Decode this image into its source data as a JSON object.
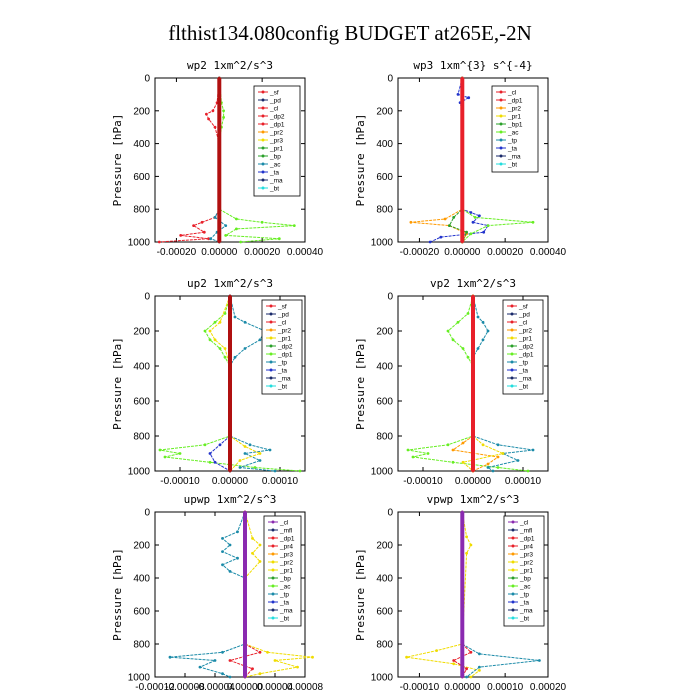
{
  "figure_title": "flthist134.080config  BUDGET at265E,-2N",
  "ylabel": "Pressure [hPa]",
  "colors": {
    "red": "#e8202a",
    "darkred": "#b01010",
    "orange": "#ff9a00",
    "yellow": "#f0dc00",
    "green": "#2aa02a",
    "lightgreen": "#66ee22",
    "teal": "#1a8aa8",
    "blue": "#2233cc",
    "navy": "#1a2a6a",
    "cyan": "#22dddd",
    "purple": "#8a2ab0",
    "gray": "#555555"
  },
  "chart_data": [
    {
      "type": "line",
      "title": "wp2   1xm^2/s^3",
      "xlim": [
        -0.0003,
        0.0004
      ],
      "xticks": [
        -0.0002,
        0.0,
        0.0002,
        0.0004
      ],
      "xtick_labels": [
        "-0.00020",
        "0.00000",
        "0.00020",
        "0.00040"
      ],
      "ylim": [
        1000,
        0
      ],
      "yticks": [
        0,
        200,
        400,
        600,
        800,
        1000
      ],
      "ytick_labels": [
        "0",
        "200",
        "400",
        "600",
        "800",
        "1000"
      ],
      "legend": [
        "_sf",
        "_pd",
        "_cl",
        "_dp2",
        "_dp1",
        "_pr2",
        "_pr3",
        "_pr1",
        "_bp",
        "_ac",
        "_ta",
        "_ma",
        "_bt"
      ],
      "legend_colors": [
        "red",
        "navy",
        "red",
        "red",
        "red",
        "orange",
        "yellow",
        "green",
        "green",
        "teal",
        "blue",
        "navy",
        "cyan"
      ],
      "series": [
        {
          "color": "red",
          "p": [
            0,
            150,
            200,
            220,
            250,
            300,
            400,
            800,
            850,
            880,
            900,
            940,
            960,
            980,
            1000
          ],
          "v": [
            0,
            -1e-05,
            -3e-05,
            -6e-05,
            -5e-05,
            -2e-05,
            0,
            0,
            -2e-05,
            -8e-05,
            -0.00012,
            -7e-05,
            -0.00018,
            -5e-05,
            -0.00028
          ]
        },
        {
          "color": "lightgreen",
          "p": [
            0,
            150,
            200,
            240,
            300,
            400,
            800,
            860,
            880,
            900,
            920,
            960,
            980,
            1000
          ],
          "v": [
            0,
            1e-05,
            2e-05,
            2e-05,
            1e-05,
            0,
            0,
            8e-05,
            0.0002,
            0.00035,
            8e-05,
            3e-05,
            0.00028,
            0.0001
          ]
        },
        {
          "color": "teal",
          "p": [
            0,
            800,
            850,
            900,
            940,
            980,
            1000
          ],
          "v": [
            0,
            0,
            -2e-05,
            3e-05,
            -1e-05,
            -4e-05,
            0
          ]
        },
        {
          "color": "darkred",
          "p": [
            0,
            200,
            400,
            600,
            800,
            900,
            1000
          ],
          "v": [
            0,
            0,
            0,
            0,
            0,
            0,
            0
          ]
        }
      ]
    },
    {
      "type": "line",
      "title": "wp3   1xm^{3} s^{-4}",
      "xlim": [
        -0.0003,
        0.0004
      ],
      "xticks": [
        -0.0002,
        0.0,
        0.0002,
        0.0004
      ],
      "xtick_labels": [
        "-0.00020",
        "0.00000",
        "0.00020",
        "0.00040"
      ],
      "ylim": [
        1000,
        0
      ],
      "yticks": [
        0,
        200,
        400,
        600,
        800,
        1000
      ],
      "ytick_labels": [
        "0",
        "200",
        "400",
        "600",
        "800",
        "1000"
      ],
      "legend": [
        "_cl",
        "_dp1",
        "_pr2",
        "_pr1",
        "_bp1",
        "_ac",
        "_tp",
        "_ta",
        "_ma",
        "_bt"
      ],
      "legend_colors": [
        "red",
        "red",
        "orange",
        "yellow",
        "green",
        "lightgreen",
        "teal",
        "blue",
        "navy",
        "cyan"
      ],
      "series": [
        {
          "color": "blue",
          "p": [
            0,
            100,
            120,
            150,
            200,
            800,
            820,
            840,
            880,
            900,
            940,
            970,
            1000
          ],
          "v": [
            0,
            -2e-05,
            3e-05,
            -1e-05,
            0,
            0,
            4e-05,
            8e-05,
            5e-05,
            0.00012,
            0.0001,
            -0.0001,
            -0.00015
          ]
        },
        {
          "color": "lightgreen",
          "p": [
            0,
            800,
            850,
            880,
            900,
            950,
            1000
          ],
          "v": [
            0,
            0,
            6e-05,
            0.00033,
            0.00012,
            4e-05,
            0
          ]
        },
        {
          "color": "orange",
          "p": [
            0,
            800,
            860,
            880,
            900,
            950,
            1000
          ],
          "v": [
            0,
            0,
            -8e-05,
            -0.00024,
            -6e-05,
            2e-05,
            0
          ]
        },
        {
          "color": "green",
          "p": [
            0,
            800,
            850,
            900,
            940,
            1000
          ],
          "v": [
            0,
            0,
            -4e-05,
            -6e-05,
            2e-05,
            0
          ]
        },
        {
          "color": "red",
          "p": [
            0,
            200,
            400,
            600,
            800,
            900,
            1000
          ],
          "v": [
            0,
            0,
            0,
            0,
            0,
            0,
            0
          ]
        }
      ]
    },
    {
      "type": "line",
      "title": "up2   1xm^2/s^3",
      "xlim": [
        -0.00015,
        0.00015
      ],
      "xticks": [
        -0.0001,
        0.0,
        0.0001
      ],
      "xtick_labels": [
        "-0.00010",
        "0.00000",
        "0.00010"
      ],
      "ylim": [
        1000,
        0
      ],
      "yticks": [
        0,
        200,
        400,
        600,
        800,
        1000
      ],
      "ytick_labels": [
        "0",
        "200",
        "400",
        "600",
        "800",
        "1000"
      ],
      "legend": [
        "_sf",
        "_pd",
        "_cl",
        "_pr2",
        "_pr1",
        "_dp2",
        "_dp1",
        "_tp",
        "_ta",
        "_ma",
        "_bt"
      ],
      "legend_colors": [
        "red",
        "navy",
        "red",
        "orange",
        "yellow",
        "green",
        "lightgreen",
        "teal",
        "blue",
        "navy",
        "cyan"
      ],
      "series": [
        {
          "color": "lightgreen",
          "p": [
            0,
            100,
            150,
            200,
            250,
            300,
            350,
            400,
            800,
            850,
            880,
            900,
            920,
            950,
            980,
            1000
          ],
          "v": [
            0,
            -1e-05,
            -3e-05,
            -5e-05,
            -4e-05,
            -2e-05,
            -1e-05,
            0,
            0,
            -5e-05,
            -0.00014,
            -0.0001,
            -0.00013,
            -4e-05,
            5e-05,
            0.00014
          ]
        },
        {
          "color": "teal",
          "p": [
            0,
            120,
            150,
            200,
            250,
            300,
            350,
            400,
            800,
            850,
            880,
            900,
            940,
            980,
            1000
          ],
          "v": [
            0,
            1e-05,
            3e-05,
            7e-05,
            6e-05,
            3e-05,
            1e-05,
            0,
            0,
            4e-05,
            8e-05,
            3e-05,
            6e-05,
            2e-05,
            9e-05
          ]
        },
        {
          "color": "yellow",
          "p": [
            0,
            150,
            200,
            250,
            300,
            400,
            800,
            860,
            900,
            940,
            1000
          ],
          "v": [
            0,
            -2e-05,
            -4e-05,
            -3e-05,
            -1e-05,
            0,
            0,
            3e-05,
            6e-05,
            2e-05,
            0
          ]
        },
        {
          "color": "blue",
          "p": [
            0,
            800,
            850,
            900,
            950,
            1000
          ],
          "v": [
            0,
            0,
            -2e-05,
            -4e-05,
            -3e-05,
            0
          ]
        },
        {
          "color": "darkred",
          "p": [
            0,
            200,
            400,
            600,
            800,
            900,
            1000
          ],
          "v": [
            0,
            0,
            0,
            0,
            0,
            0,
            0
          ]
        }
      ]
    },
    {
      "type": "line",
      "title": "vp2   1xm^2/s^3",
      "xlim": [
        -0.00015,
        0.00015
      ],
      "xticks": [
        -0.0001,
        0.0,
        0.0001
      ],
      "xtick_labels": [
        "-0.00010",
        "0.00000",
        "0.00010"
      ],
      "ylim": [
        1000,
        0
      ],
      "yticks": [
        0,
        200,
        400,
        600,
        800,
        1000
      ],
      "ytick_labels": [
        "0",
        "200",
        "400",
        "600",
        "800",
        "1000"
      ],
      "legend": [
        "_sf",
        "_pd",
        "_cl",
        "_pr2",
        "_pr1",
        "_dp2",
        "_dp1",
        "_tp",
        "_ta",
        "_ma",
        "_bt"
      ],
      "legend_colors": [
        "red",
        "navy",
        "red",
        "orange",
        "yellow",
        "green",
        "lightgreen",
        "teal",
        "blue",
        "navy",
        "cyan"
      ],
      "series": [
        {
          "color": "lightgreen",
          "p": [
            0,
            100,
            150,
            200,
            250,
            300,
            350,
            400,
            800,
            850,
            880,
            900,
            920,
            950,
            980,
            1000
          ],
          "v": [
            0,
            -1e-05,
            -3e-05,
            -5e-05,
            -4e-05,
            -2e-05,
            -1e-05,
            0,
            0,
            -5e-05,
            -0.00013,
            -9e-05,
            -0.00012,
            -4e-05,
            5e-05,
            0.00011
          ]
        },
        {
          "color": "teal",
          "p": [
            0,
            120,
            150,
            200,
            250,
            300,
            350,
            400,
            800,
            850,
            880,
            900,
            940,
            980,
            1000
          ],
          "v": [
            0,
            1e-05,
            2e-05,
            3e-05,
            2e-05,
            1e-05,
            0,
            0,
            0,
            5e-05,
            0.00012,
            6e-05,
            9e-05,
            3e-05,
            4e-05
          ]
        },
        {
          "color": "orange",
          "p": [
            0,
            800,
            840,
            880,
            920,
            960,
            1000
          ],
          "v": [
            0,
            0,
            -2e-05,
            -4e-05,
            5e-05,
            3e-05,
            0
          ]
        },
        {
          "color": "yellow",
          "p": [
            0,
            800,
            850,
            900,
            950,
            1000
          ],
          "v": [
            0,
            0,
            2e-05,
            6e-05,
            -2e-05,
            0
          ]
        },
        {
          "color": "red",
          "p": [
            0,
            200,
            400,
            600,
            800,
            900,
            1000
          ],
          "v": [
            0,
            0,
            0,
            0,
            0,
            0,
            0
          ]
        }
      ]
    },
    {
      "type": "line",
      "title": "upwp   1xm^2/s^3",
      "xlim": [
        -0.00012,
        8e-05
      ],
      "xticks": [
        -0.00012,
        -8e-05,
        -4e-05,
        0.0,
        4e-05,
        8e-05
      ],
      "xtick_labels": [
        "-0.00012",
        "-0.00008",
        "-0.00004",
        "0.00000",
        "0.00004",
        "0.00008"
      ],
      "ylim": [
        1000,
        0
      ],
      "yticks": [
        0,
        200,
        400,
        600,
        800,
        1000
      ],
      "ytick_labels": [
        "0",
        "200",
        "400",
        "600",
        "800",
        "1000"
      ],
      "legend": [
        "_cl",
        "_mfl",
        "_dp1",
        "_pr4",
        "_pr3",
        "_pr2",
        "_pr1",
        "_bp",
        "_ac",
        "_tp",
        "_ta",
        "_ma",
        "_bt"
      ],
      "legend_colors": [
        "purple",
        "navy",
        "red",
        "red",
        "orange",
        "yellow",
        "yellow",
        "green",
        "lightgreen",
        "teal",
        "blue",
        "navy",
        "cyan"
      ],
      "series": [
        {
          "color": "teal",
          "p": [
            0,
            120,
            160,
            200,
            240,
            280,
            320,
            360,
            400,
            800,
            850,
            880,
            900,
            940,
            980,
            1000
          ],
          "v": [
            0,
            -1e-05,
            -3e-05,
            -2e-05,
            -3e-05,
            -1e-05,
            -3e-05,
            -2e-05,
            0,
            0,
            -3e-05,
            -0.0001,
            -4e-05,
            -6e-05,
            -3e-05,
            -2e-05
          ]
        },
        {
          "color": "yellow",
          "p": [
            0,
            160,
            200,
            250,
            300,
            400,
            800,
            850,
            880,
            900,
            940,
            980,
            1000
          ],
          "v": [
            0,
            1e-05,
            2e-05,
            1e-05,
            2e-05,
            0,
            0,
            3e-05,
            9e-05,
            4e-05,
            7e-05,
            2e-05,
            0
          ]
        },
        {
          "color": "red",
          "p": [
            0,
            800,
            850,
            900,
            950,
            1000
          ],
          "v": [
            0,
            0,
            2e-05,
            -2e-05,
            1e-05,
            0
          ]
        },
        {
          "color": "purple",
          "p": [
            0,
            200,
            400,
            600,
            800,
            900,
            1000
          ],
          "v": [
            0,
            0,
            0,
            0,
            0,
            0,
            0
          ]
        }
      ]
    },
    {
      "type": "line",
      "title": "vpwp   1xm^2/s^3",
      "xlim": [
        -0.00015,
        0.0002
      ],
      "xticks": [
        -0.0001,
        0.0,
        0.0001,
        0.0002
      ],
      "xtick_labels": [
        "-0.00010",
        "0.00000",
        "0.00010",
        "0.00020"
      ],
      "ylim": [
        1000,
        0
      ],
      "yticks": [
        0,
        200,
        400,
        600,
        800,
        1000
      ],
      "ytick_labels": [
        "0",
        "200",
        "400",
        "600",
        "800",
        "1000"
      ],
      "legend": [
        "_cl",
        "_mfl",
        "_dp1",
        "_pr4",
        "_pr3",
        "_pr2",
        "_pr1",
        "_bp",
        "_ac",
        "_tp",
        "_ta",
        "_ma",
        "_bt"
      ],
      "legend_colors": [
        "purple",
        "navy",
        "red",
        "red",
        "orange",
        "yellow",
        "yellow",
        "green",
        "lightgreen",
        "teal",
        "blue",
        "navy",
        "cyan"
      ],
      "series": [
        {
          "color": "yellow",
          "p": [
            0,
            150,
            200,
            250,
            800,
            840,
            880,
            920,
            960,
            1000
          ],
          "v": [
            0,
            1e-05,
            2e-05,
            1e-05,
            0,
            -6e-05,
            -0.00013,
            -2e-05,
            4e-05,
            2e-05
          ]
        },
        {
          "color": "teal",
          "p": [
            0,
            800,
            860,
            900,
            940,
            1000
          ],
          "v": [
            0,
            0,
            4e-05,
            0.00018,
            4e-05,
            1e-05
          ]
        },
        {
          "color": "red",
          "p": [
            0,
            800,
            850,
            900,
            950,
            1000
          ],
          "v": [
            0,
            0,
            2e-05,
            -2e-05,
            1e-05,
            0
          ]
        },
        {
          "color": "purple",
          "p": [
            0,
            200,
            400,
            600,
            800,
            900,
            1000
          ],
          "v": [
            0,
            0,
            0,
            0,
            0,
            0,
            0
          ]
        }
      ]
    }
  ]
}
